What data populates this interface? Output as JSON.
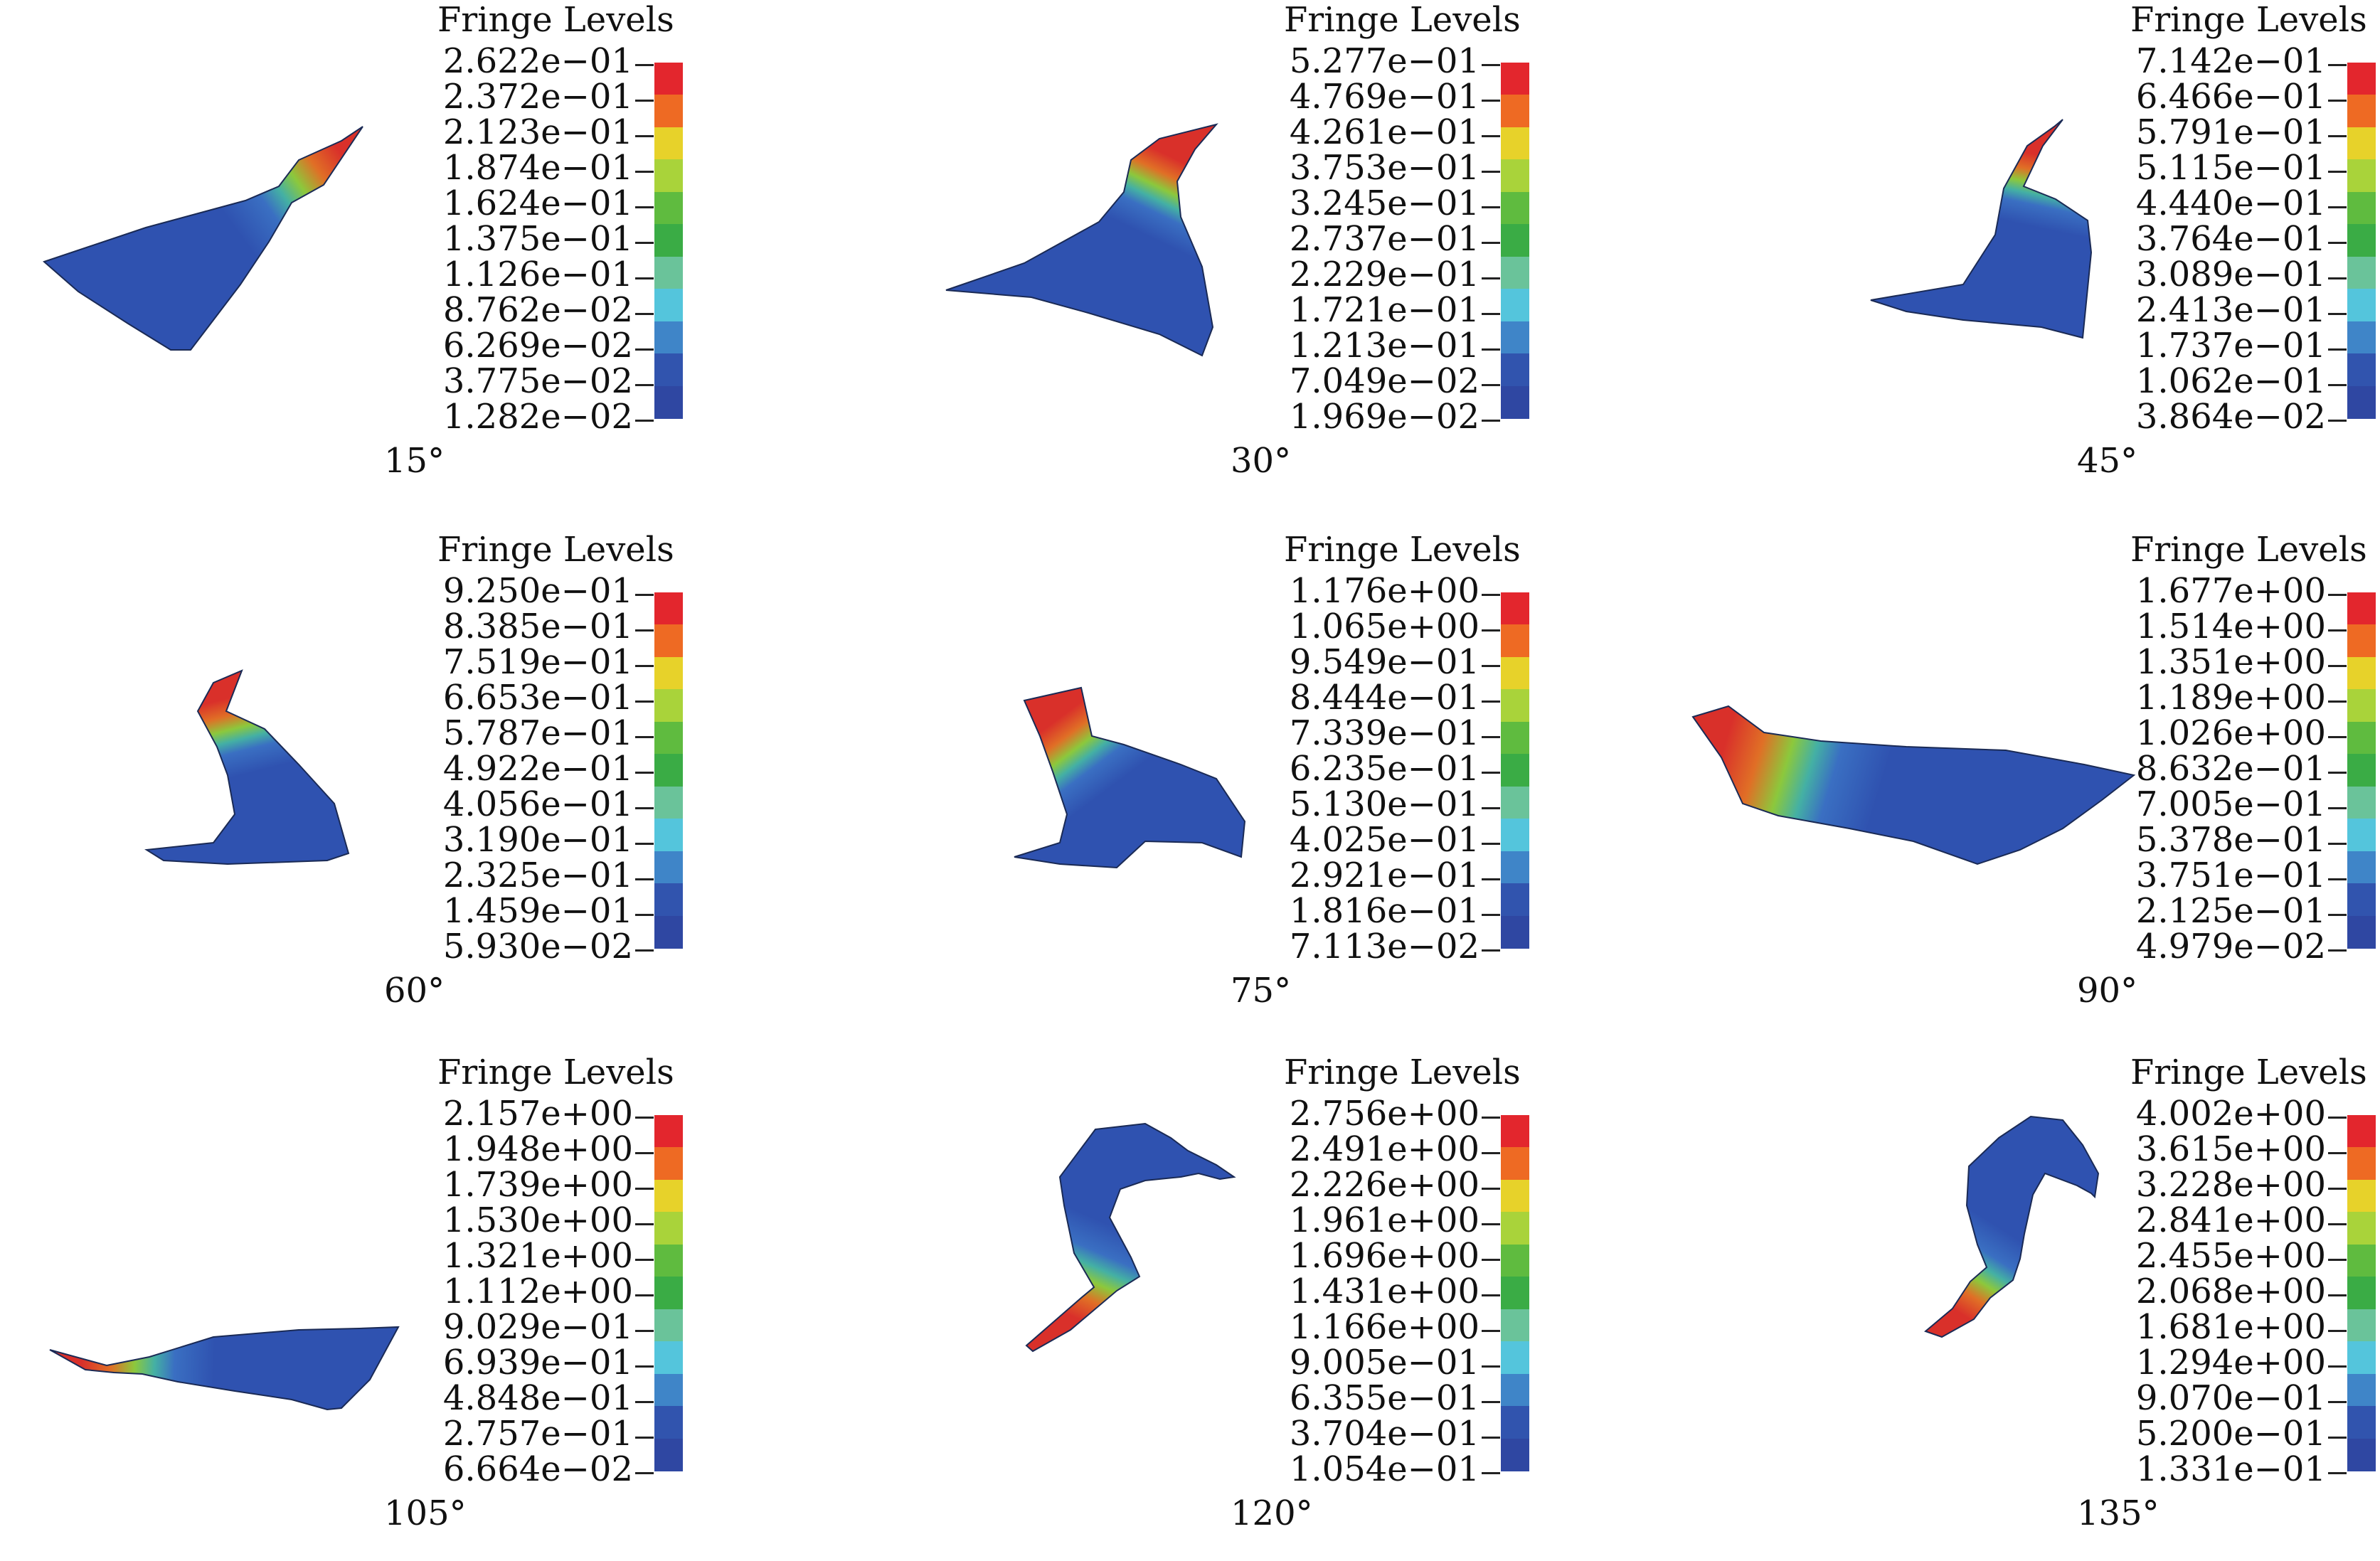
{
  "title_label": "Fringe Levels",
  "colorbar": [
    "#e3262d",
    "#ee6a23",
    "#e7d22a",
    "#a9d33a",
    "#5fbb3f",
    "#3aac45",
    "#6ac39a",
    "#54c5dc",
    "#3f85c8",
    "#3154ae",
    "#2f47a2"
  ],
  "panels": [
    {
      "angle": "15°",
      "levels": [
        "2.622e−01",
        "2.372e−01",
        "2.123e−01",
        "1.874e−01",
        "1.624e−01",
        "1.375e−01",
        "1.126e−01",
        "8.762e−02",
        "6.269e−02",
        "3.775e−02",
        "1.282e−02"
      ]
    },
    {
      "angle": "30°",
      "levels": [
        "5.277e−01",
        "4.769e−01",
        "4.261e−01",
        "3.753e−01",
        "3.245e−01",
        "2.737e−01",
        "2.229e−01",
        "1.721e−01",
        "1.213e−01",
        "7.049e−02",
        "1.969e−02"
      ]
    },
    {
      "angle": "45°",
      "levels": [
        "7.142e−01",
        "6.466e−01",
        "5.791e−01",
        "5.115e−01",
        "4.440e−01",
        "3.764e−01",
        "3.089e−01",
        "2.413e−01",
        "1.737e−01",
        "1.062e−01",
        "3.864e−02"
      ]
    },
    {
      "angle": "60°",
      "levels": [
        "9.250e−01",
        "8.385e−01",
        "7.519e−01",
        "6.653e−01",
        "5.787e−01",
        "4.922e−01",
        "4.056e−01",
        "3.190e−01",
        "2.325e−01",
        "1.459e−01",
        "5.930e−02"
      ]
    },
    {
      "angle": "75°",
      "levels": [
        "1.176e+00",
        "1.065e+00",
        "9.549e−01",
        "8.444e−01",
        "7.339e−01",
        "6.235e−01",
        "5.130e−01",
        "4.025e−01",
        "2.921e−01",
        "1.816e−01",
        "7.113e−02"
      ]
    },
    {
      "angle": "90°",
      "levels": [
        "1.677e+00",
        "1.514e+00",
        "1.351e+00",
        "1.189e+00",
        "1.026e+00",
        "8.632e−01",
        "7.005e−01",
        "5.378e−01",
        "3.751e−01",
        "2.125e−01",
        "4.979e−02"
      ]
    },
    {
      "angle": "105°",
      "levels": [
        "2.157e+00",
        "1.948e+00",
        "1.739e+00",
        "1.530e+00",
        "1.321e+00",
        "1.112e+00",
        "9.029e−01",
        "6.939e−01",
        "4.848e−01",
        "2.757e−01",
        "6.664e−02"
      ]
    },
    {
      "angle": "120°",
      "levels": [
        "2.756e+00",
        "2.491e+00",
        "2.226e+00",
        "1.961e+00",
        "1.696e+00",
        "1.431e+00",
        "1.166e+00",
        "9.005e−01",
        "6.355e−01",
        "3.704e−01",
        "1.054e−01"
      ]
    },
    {
      "angle": "135°",
      "levels": [
        "4.002e+00",
        "3.615e+00",
        "3.228e+00",
        "2.841e+00",
        "2.455e+00",
        "2.068e+00",
        "1.681e+00",
        "1.294e+00",
        "9.070e−01",
        "5.200e−01",
        "1.331e−01"
      ]
    }
  ]
}
